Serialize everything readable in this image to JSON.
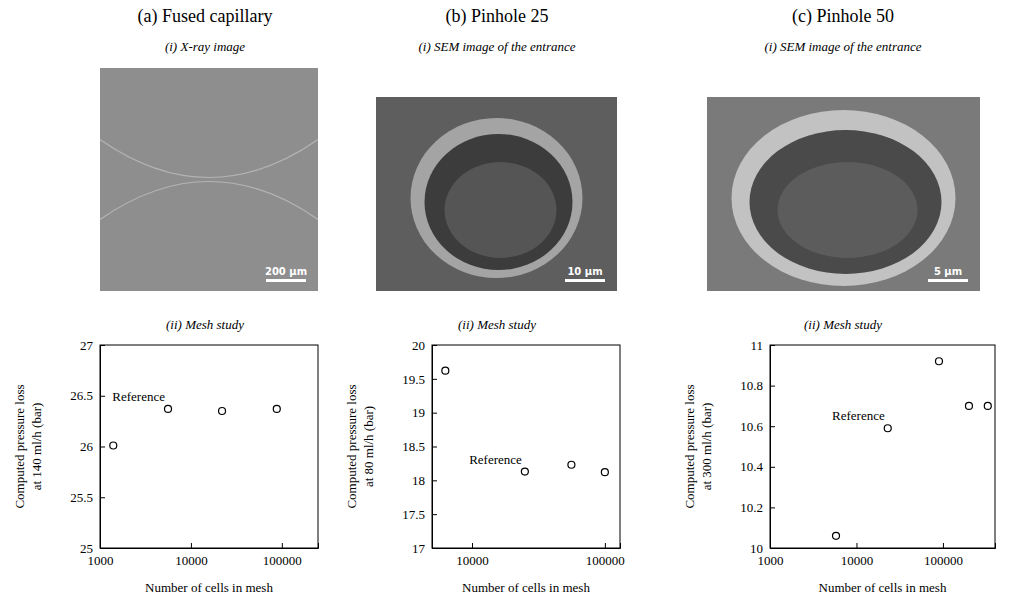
{
  "chart_data": [
    {
      "type": "scatter",
      "title": "(a) Fused capillary",
      "image": {
        "title": "(i) X-ray image",
        "scale_bar": "200 µm"
      },
      "subtitle": "(ii) Mesh study",
      "annotations": [
        "Reference"
      ],
      "xlabel": "Number of cells in mesh",
      "ylabel": [
        "Computed pressure loss",
        "at 140 ml/h (bar)"
      ],
      "x": [
        1400,
        5600,
        22000,
        88000
      ],
      "values": [
        26.01,
        26.37,
        26.35,
        26.37
      ],
      "xlim": [
        1000,
        250000
      ],
      "xticks": [
        1000,
        10000,
        100000
      ],
      "ylim": [
        25,
        27
      ],
      "yticks": [
        25,
        25.5,
        26,
        26.5,
        27
      ],
      "log": "x",
      "grid": false,
      "marker": "circle",
      "color": "#000000"
    },
    {
      "type": "scatter",
      "title": "(b) Pinhole 25",
      "image": {
        "title": "(i) SEM image of the entrance",
        "scale_bar": "10 µm"
      },
      "subtitle": "(ii) Mesh study",
      "annotations": [
        "Reference"
      ],
      "xlabel": "Number of cells in mesh",
      "ylabel": [
        "Computed pressure loss",
        "at 80 ml/h (bar)"
      ],
      "x": [
        6300,
        25000,
        56000,
        100000
      ],
      "values": [
        19.62,
        18.13,
        18.23,
        18.12
      ],
      "xlim": [
        5000,
        130000
      ],
      "xticks": [
        10000,
        100000
      ],
      "ylim": [
        17,
        20
      ],
      "yticks": [
        17,
        17.5,
        18,
        18.5,
        19,
        19.5,
        20
      ],
      "log": "x",
      "grid": false,
      "marker": "circle",
      "color": "#000000"
    },
    {
      "type": "scatter",
      "title": "(c) Pinhole 50",
      "image": {
        "title": "(i) SEM image of the entrance",
        "scale_bar": "5 µm"
      },
      "subtitle": "(ii) Mesh study",
      "annotations": [
        "Reference"
      ],
      "xlabel": "Number of cells in mesh",
      "ylabel": [
        "Computed pressure loss",
        "at 300 ml/h (bar)"
      ],
      "x": [
        5800,
        23000,
        90000,
        200000,
        330000
      ],
      "values": [
        10.06,
        10.59,
        10.92,
        10.7,
        10.7
      ],
      "xlim": [
        1000,
        400000
      ],
      "xticks": [
        1000,
        10000,
        100000
      ],
      "ylim": [
        10,
        11
      ],
      "yticks": [
        10,
        10.2,
        10.4,
        10.6,
        10.8,
        11
      ],
      "log": "x",
      "grid": false,
      "marker": "circle",
      "color": "#000000"
    }
  ]
}
